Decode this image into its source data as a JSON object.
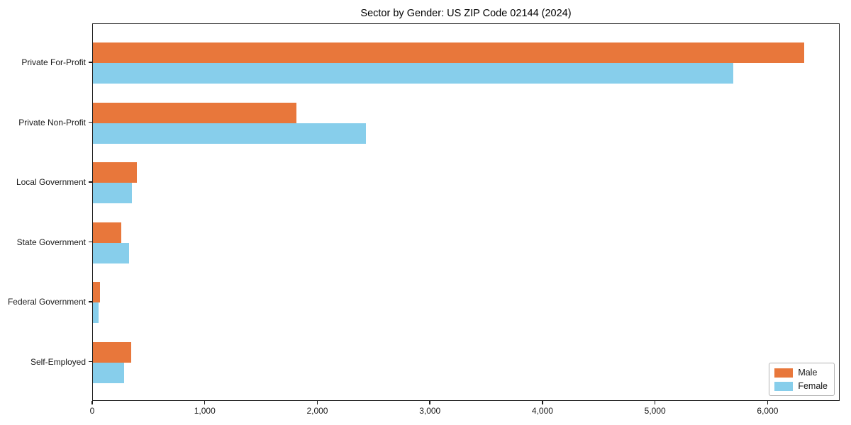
{
  "chart": {
    "title": "Sector by Gender: US ZIP Code 02144 (2024)",
    "colors": {
      "male": "#e8773b",
      "female": "#87ceeb",
      "axis": "#1a1a1a",
      "background": "#ffffff",
      "legend_border": "#b3b3b3"
    },
    "legend": {
      "items": [
        {
          "label": "Male",
          "color": "#e8773b"
        },
        {
          "label": "Female",
          "color": "#87ceeb"
        }
      ],
      "position": "lower right"
    }
  },
  "chart_data": {
    "type": "bar",
    "orientation": "horizontal",
    "title": "Sector by Gender: US ZIP Code 02144 (2024)",
    "categories": [
      "Private For-Profit",
      "Private Non-Profit",
      "Local Government",
      "State Government",
      "Federal Government",
      "Self-Employed"
    ],
    "series": [
      {
        "name": "Male",
        "color": "#e8773b",
        "values": [
          6330,
          1810,
          390,
          250,
          60,
          340
        ]
      },
      {
        "name": "Female",
        "color": "#87ceeb",
        "values": [
          5700,
          2430,
          345,
          320,
          50,
          280
        ]
      }
    ],
    "xlabel": "",
    "ylabel": "",
    "xlim": [
      0,
      6640
    ],
    "xticks": [
      0,
      1000,
      2000,
      3000,
      4000,
      5000,
      6000
    ],
    "xtick_labels": [
      "0",
      "1,000",
      "2,000",
      "3,000",
      "4,000",
      "5,000",
      "6,000"
    ],
    "grid": false,
    "legend_position": "lower right"
  }
}
